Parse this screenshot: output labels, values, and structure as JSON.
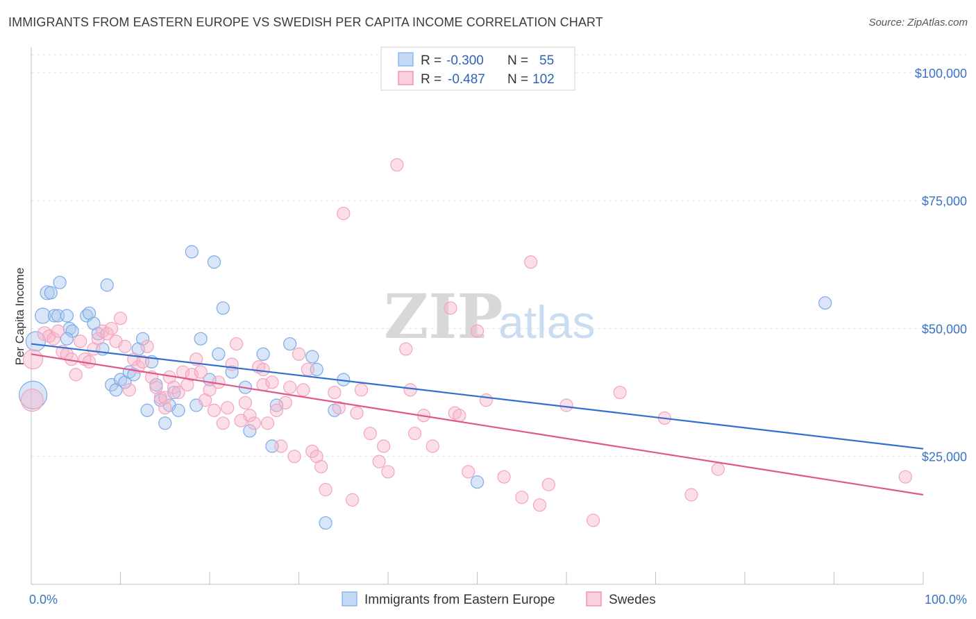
{
  "title": "IMMIGRANTS FROM EASTERN EUROPE VS SWEDISH PER CAPITA INCOME CORRELATION CHART",
  "source": "Source: ZipAtlas.com",
  "watermark": {
    "part1": "ZIP",
    "part2": "atlas"
  },
  "legend": {
    "r_label": "R =",
    "n_label": "N =",
    "rows": [
      {
        "r": "-0.300",
        "n": "55",
        "color": "#a9c8f0"
      },
      {
        "r": "-0.487",
        "n": "102",
        "color": "#f7b6ca"
      }
    ]
  },
  "chart_data": {
    "type": "scatter",
    "title": "IMMIGRANTS FROM EASTERN EUROPE VS SWEDISH PER CAPITA INCOME CORRELATION CHART",
    "xlabel": "",
    "ylabel": "Per Capita Income",
    "xlim": [
      0,
      100
    ],
    "ylim": [
      0,
      105000
    ],
    "x_tick_labels": [
      "0.0%",
      "100.0%"
    ],
    "y_ticks": [
      25000,
      50000,
      75000,
      100000
    ],
    "y_tick_labels": [
      "$25,000",
      "$50,000",
      "$75,000",
      "$100,000"
    ],
    "grid": true,
    "legend_position": "top-center",
    "series": [
      {
        "name": "Immigrants from Eastern Europe",
        "color": "#7aaae8",
        "line_color": "#2f6fd0",
        "trend": {
          "x": [
            0,
            100
          ],
          "y": [
            47000,
            26500
          ]
        },
        "points": [
          [
            0.5,
            47500,
            14
          ],
          [
            0.2,
            37000,
            20
          ],
          [
            1.3,
            52500,
            11
          ],
          [
            1.8,
            57000,
            10
          ],
          [
            2.2,
            57000,
            9
          ],
          [
            2.6,
            52500,
            9
          ],
          [
            3.0,
            52500,
            9
          ],
          [
            3.2,
            59000,
            9
          ],
          [
            4.3,
            50000,
            9
          ],
          [
            4.6,
            49500,
            9
          ],
          [
            4.0,
            48000,
            9
          ],
          [
            4.0,
            52500,
            9
          ],
          [
            6.2,
            52500,
            9
          ],
          [
            6.5,
            53000,
            9
          ],
          [
            7.0,
            51000,
            9
          ],
          [
            7.5,
            49000,
            9
          ],
          [
            8.0,
            46000,
            9
          ],
          [
            8.5,
            58500,
            9
          ],
          [
            9.0,
            39000,
            9
          ],
          [
            9.5,
            38000,
            9
          ],
          [
            10.0,
            40000,
            9
          ],
          [
            10.5,
            39500,
            9
          ],
          [
            11.0,
            41500,
            9
          ],
          [
            11.5,
            41000,
            9
          ],
          [
            12.0,
            46000,
            9
          ],
          [
            12.5,
            48000,
            9
          ],
          [
            13.0,
            34000,
            9
          ],
          [
            13.5,
            43500,
            9
          ],
          [
            14.0,
            39000,
            9
          ],
          [
            14.5,
            36000,
            9
          ],
          [
            15.0,
            31500,
            9
          ],
          [
            15.5,
            35000,
            9
          ],
          [
            16.0,
            37500,
            9
          ],
          [
            16.5,
            34000,
            9
          ],
          [
            18.0,
            65000,
            9
          ],
          [
            18.5,
            35000,
            9
          ],
          [
            19.0,
            48000,
            9
          ],
          [
            20.0,
            40000,
            9
          ],
          [
            20.5,
            63000,
            9
          ],
          [
            21.0,
            45000,
            9
          ],
          [
            21.5,
            54000,
            9
          ],
          [
            22.5,
            41500,
            9
          ],
          [
            24.0,
            38500,
            9
          ],
          [
            24.5,
            30000,
            9
          ],
          [
            26.0,
            45000,
            9
          ],
          [
            27.0,
            27000,
            9
          ],
          [
            27.5,
            35000,
            9
          ],
          [
            29.0,
            47000,
            9
          ],
          [
            32.0,
            42000,
            9
          ],
          [
            31.5,
            44500,
            9
          ],
          [
            33.0,
            12000,
            9
          ],
          [
            34.0,
            34000,
            9
          ],
          [
            35.0,
            40000,
            9
          ],
          [
            50.0,
            20000,
            9
          ],
          [
            89.0,
            55000,
            9
          ]
        ]
      },
      {
        "name": "Swedes",
        "color": "#f4a3bf",
        "line_color": "#e0578c",
        "trend": {
          "x": [
            0,
            100
          ],
          "y": [
            45000,
            17500
          ]
        },
        "points": [
          [
            0.2,
            44000,
            14
          ],
          [
            0.1,
            36000,
            16
          ],
          [
            1.5,
            49000,
            10
          ],
          [
            2.0,
            48500,
            9
          ],
          [
            2.5,
            48000,
            9
          ],
          [
            3.0,
            49500,
            9
          ],
          [
            3.5,
            45500,
            9
          ],
          [
            4.0,
            45000,
            9
          ],
          [
            4.5,
            44000,
            9
          ],
          [
            5.0,
            41000,
            9
          ],
          [
            5.5,
            47500,
            9
          ],
          [
            6.0,
            44000,
            9
          ],
          [
            6.5,
            43500,
            9
          ],
          [
            7.0,
            46000,
            9
          ],
          [
            7.5,
            48000,
            9
          ],
          [
            8.0,
            49500,
            9
          ],
          [
            8.5,
            49000,
            9
          ],
          [
            9.0,
            50000,
            9
          ],
          [
            9.5,
            47500,
            9
          ],
          [
            10.0,
            52000,
            9
          ],
          [
            10.5,
            46500,
            9
          ],
          [
            11.0,
            38000,
            9
          ],
          [
            11.5,
            44000,
            9
          ],
          [
            12.0,
            42500,
            9
          ],
          [
            12.5,
            43500,
            9
          ],
          [
            13.0,
            46500,
            9
          ],
          [
            13.5,
            40500,
            9
          ],
          [
            14.0,
            38500,
            9
          ],
          [
            14.5,
            36500,
            9
          ],
          [
            15.0,
            34500,
            9
          ],
          [
            15.5,
            40500,
            9
          ],
          [
            16.0,
            38500,
            9
          ],
          [
            16.5,
            37500,
            9
          ],
          [
            17.0,
            41500,
            9
          ],
          [
            17.5,
            39000,
            9
          ],
          [
            18.0,
            41000,
            9
          ],
          [
            18.5,
            44000,
            9
          ],
          [
            19.0,
            41500,
            9
          ],
          [
            19.5,
            36000,
            9
          ],
          [
            20.0,
            38000,
            9
          ],
          [
            20.5,
            34000,
            9
          ],
          [
            21.0,
            39500,
            9
          ],
          [
            21.5,
            31500,
            9
          ],
          [
            22.0,
            34500,
            9
          ],
          [
            22.5,
            43000,
            9
          ],
          [
            23.0,
            47000,
            9
          ],
          [
            23.5,
            32000,
            9
          ],
          [
            24.0,
            35500,
            9
          ],
          [
            24.5,
            33000,
            9
          ],
          [
            25.0,
            31500,
            9
          ],
          [
            25.5,
            42500,
            9
          ],
          [
            26.0,
            39000,
            9
          ],
          [
            26.5,
            31500,
            9
          ],
          [
            27.0,
            39500,
            9
          ],
          [
            27.5,
            34000,
            9
          ],
          [
            28.0,
            27000,
            9
          ],
          [
            28.5,
            35500,
            9
          ],
          [
            29.0,
            38500,
            9
          ],
          [
            29.5,
            25000,
            9
          ],
          [
            30.0,
            45000,
            9
          ],
          [
            30.5,
            38000,
            9
          ],
          [
            31.0,
            42000,
            9
          ],
          [
            31.5,
            26000,
            9
          ],
          [
            32.0,
            25000,
            9
          ],
          [
            32.5,
            23000,
            9
          ],
          [
            33.0,
            18500,
            9
          ],
          [
            34.0,
            37500,
            9
          ],
          [
            34.5,
            34500,
            9
          ],
          [
            35.0,
            72500,
            9
          ],
          [
            36.0,
            16500,
            9
          ],
          [
            36.5,
            33500,
            9
          ],
          [
            37.0,
            38000,
            9
          ],
          [
            38.0,
            29500,
            9
          ],
          [
            39.0,
            24000,
            9
          ],
          [
            39.5,
            27000,
            9
          ],
          [
            40.0,
            22000,
            9
          ],
          [
            41.0,
            82000,
            9
          ],
          [
            42.0,
            46000,
            9
          ],
          [
            42.5,
            38000,
            9
          ],
          [
            43.0,
            29500,
            9
          ],
          [
            44.0,
            33000,
            9
          ],
          [
            45.0,
            27000,
            9
          ],
          [
            47.0,
            54000,
            9
          ],
          [
            47.5,
            33500,
            9
          ],
          [
            48.0,
            33000,
            9
          ],
          [
            49.0,
            22000,
            9
          ],
          [
            50.0,
            49500,
            9
          ],
          [
            51.0,
            36000,
            9
          ],
          [
            53.0,
            21000,
            9
          ],
          [
            55.0,
            17000,
            9
          ],
          [
            56.0,
            63000,
            9
          ],
          [
            57.0,
            15500,
            9
          ],
          [
            58.0,
            19500,
            9
          ],
          [
            60.0,
            35000,
            9
          ],
          [
            63.0,
            12500,
            9
          ],
          [
            66.0,
            37500,
            9
          ],
          [
            71.0,
            32500,
            9
          ],
          [
            74.0,
            17500,
            9
          ],
          [
            77.0,
            22500,
            9
          ],
          [
            98.0,
            21000,
            9
          ],
          [
            15.0,
            36500,
            9
          ],
          [
            26.0,
            42000,
            9
          ]
        ]
      }
    ]
  },
  "bottom_legend": [
    {
      "label": "Immigrants from Eastern Europe"
    },
    {
      "label": "Swedes"
    }
  ]
}
